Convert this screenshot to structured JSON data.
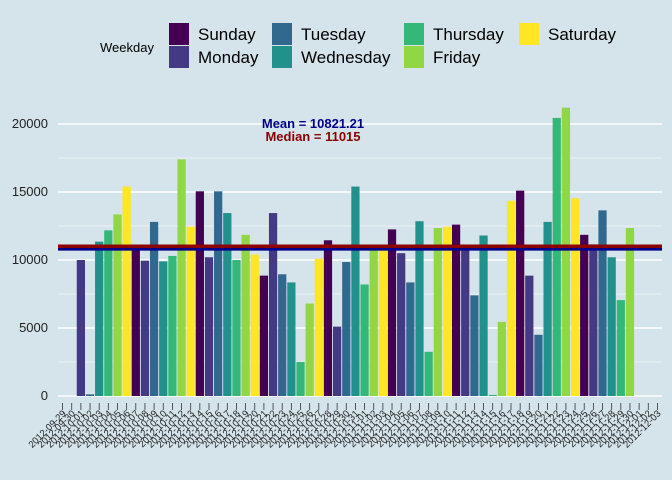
{
  "chart_data": {
    "type": "bar",
    "legend_title": "Weekday",
    "legend_position": "top",
    "weekdays": [
      {
        "name": "Sunday",
        "color": "#440154"
      },
      {
        "name": "Monday",
        "color": "#443a83"
      },
      {
        "name": "Tuesday",
        "color": "#31688e"
      },
      {
        "name": "Wednesday",
        "color": "#21918c"
      },
      {
        "name": "Thursday",
        "color": "#35b779"
      },
      {
        "name": "Friday",
        "color": "#90d743"
      },
      {
        "name": "Saturday",
        "color": "#fde725"
      }
    ],
    "start_weekday_index": 6,
    "x_tick_labels": [
      "2012-09-29",
      "2012-09-30",
      "2012-10-01",
      "2012-10-02",
      "2012-10-03",
      "2012-10-04",
      "2012-10-05",
      "2012-10-06",
      "2012-10-07",
      "2012-10-08",
      "2012-10-09",
      "2012-10-10",
      "2012-10-11",
      "2012-10-12",
      "2012-10-13",
      "2012-10-14",
      "2012-10-15",
      "2012-10-16",
      "2012-10-17",
      "2012-10-18",
      "2012-10-19",
      "2012-10-20",
      "2012-10-21",
      "2012-10-22",
      "2012-10-23",
      "2012-10-24",
      "2012-10-25",
      "2012-10-26",
      "2012-10-27",
      "2012-10-28",
      "2012-10-29",
      "2012-10-30",
      "2012-10-31",
      "2012-11-01",
      "2012-11-02",
      "2012-11-03",
      "2012-11-04",
      "2012-11-05",
      "2012-11-06",
      "2012-11-07",
      "2012-11-08",
      "2012-11-09",
      "2012-11-10",
      "2012-11-11",
      "2012-11-12",
      "2012-11-13",
      "2012-11-14",
      "2012-11-15",
      "2012-11-16",
      "2012-11-17",
      "2012-11-18",
      "2012-11-19",
      "2012-11-20",
      "2012-11-21",
      "2012-11-22",
      "2012-11-23",
      "2012-11-24",
      "2012-11-25",
      "2012-11-26",
      "2012-11-27",
      "2012-11-28",
      "2012-11-29",
      "2012-11-30",
      "2012-12-01",
      "2012-12-02",
      "2012-12-03"
    ],
    "values": [
      0,
      0,
      10000,
      120,
      11350,
      12180,
      13350,
      15400,
      10900,
      9950,
      12800,
      9900,
      10300,
      17400,
      12450,
      15050,
      10200,
      15050,
      13450,
      10000,
      11850,
      10400,
      8850,
      13450,
      8950,
      8350,
      2500,
      6800,
      10100,
      11450,
      5100,
      9850,
      15400,
      8200,
      10700,
      10900,
      12250,
      10500,
      8350,
      12850,
      3250,
      12350,
      12450,
      12600,
      10750,
      7400,
      11800,
      80,
      5450,
      14350,
      15100,
      8850,
      4500,
      12800,
      20450,
      21200,
      14550,
      11850,
      11150,
      13650,
      10200,
      7050,
      12350,
      0,
      0,
      0
    ],
    "y_ticks": [
      0,
      5000,
      10000,
      15000,
      20000
    ],
    "ylim": [
      -1000,
      22400
    ],
    "mean": 10821.21,
    "median": 11015,
    "mean_label": "Mean = ",
    "mean_value": "10821.21",
    "median_label": "Median = ",
    "median_value": "11015",
    "mean_color": "#00008b",
    "median_color": "#8b0000",
    "background": "#d5e3ea",
    "grid": true
  }
}
